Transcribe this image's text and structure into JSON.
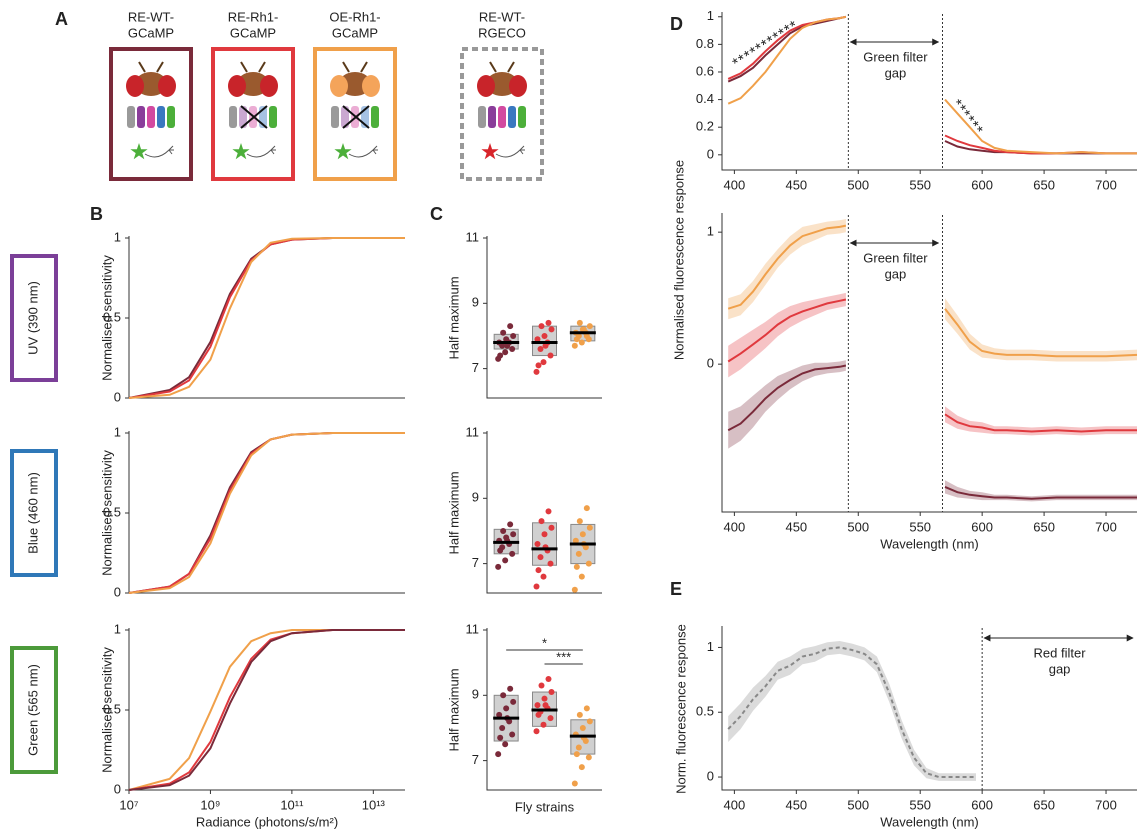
{
  "panel_labels": [
    "A",
    "B",
    "C",
    "D",
    "E"
  ],
  "strains": [
    [
      "RE-WT-",
      "GCaMP"
    ],
    [
      "RE-Rh1-",
      "GCaMP"
    ],
    [
      "OE-Rh1-",
      "GCaMP"
    ],
    [
      "RE-WT-",
      "RGECO"
    ]
  ],
  "stimuli": [
    "UV (390 nm)",
    "Blue (460 nm)",
    "Green (565 nm)"
  ],
  "chart_data": [
    {
      "type": "line",
      "ylabel": "Normalised sensitivity",
      "xlog": true,
      "xlim": [
        10000000,
        60000000000000
      ],
      "ylim": [
        0,
        1
      ],
      "yticks": [
        0,
        0.5,
        1
      ],
      "x": [
        10000000,
        100000000,
        300000000,
        1000000000,
        3000000000,
        10000000000,
        30000000000,
        100000000000,
        1000000000000,
        60000000000000
      ],
      "series": [
        {
          "color": "#7a2a3a",
          "values": [
            0,
            0.05,
            0.13,
            0.35,
            0.65,
            0.87,
            0.96,
            0.99,
            1,
            1
          ]
        },
        {
          "color": "#e0393e",
          "values": [
            0,
            0.04,
            0.11,
            0.32,
            0.63,
            0.86,
            0.96,
            0.99,
            1,
            1
          ]
        },
        {
          "color": "#f0a04a",
          "values": [
            0,
            0.02,
            0.07,
            0.24,
            0.56,
            0.85,
            0.97,
            0.995,
            1,
            1
          ]
        }
      ]
    },
    {
      "type": "line",
      "ylabel": "Normalised sensitivity",
      "xlog": true,
      "xlim": [
        10000000,
        60000000000000
      ],
      "ylim": [
        0,
        1
      ],
      "yticks": [
        0,
        0.5,
        1
      ],
      "x": [
        10000000,
        100000000,
        300000000,
        1000000000,
        3000000000,
        10000000000,
        30000000000,
        100000000000,
        1000000000000,
        60000000000000
      ],
      "series": [
        {
          "color": "#7a2a3a",
          "values": [
            0,
            0.04,
            0.12,
            0.36,
            0.66,
            0.88,
            0.96,
            0.99,
            1,
            1
          ]
        },
        {
          "color": "#e0393e",
          "values": [
            0,
            0.04,
            0.12,
            0.34,
            0.64,
            0.87,
            0.96,
            0.99,
            1,
            1
          ]
        },
        {
          "color": "#f0a04a",
          "values": [
            0,
            0.03,
            0.1,
            0.31,
            0.62,
            0.86,
            0.96,
            0.99,
            1,
            1
          ]
        }
      ]
    },
    {
      "type": "line",
      "ylabel": "Normalised sensitivity",
      "xlabel": "Radiance (photons/s/m²)",
      "xlog": true,
      "xlim": [
        10000000,
        60000000000000
      ],
      "ylim": [
        0,
        1
      ],
      "yticks": [
        0,
        0.5,
        1
      ],
      "xticks": [
        {
          "value": 10000000,
          "label": "10⁷"
        },
        {
          "value": 1000000000,
          "label": "10⁹"
        },
        {
          "value": 100000000000,
          "label": "10¹¹"
        },
        {
          "value": 10000000000000,
          "label": "10¹³"
        }
      ],
      "x": [
        10000000,
        100000000,
        300000000,
        1000000000,
        3000000000,
        10000000000,
        30000000000,
        100000000000,
        1000000000000,
        60000000000000
      ],
      "series": [
        {
          "color": "#f0a04a",
          "values": [
            0,
            0.07,
            0.2,
            0.49,
            0.77,
            0.93,
            0.98,
            1,
            1,
            1
          ]
        },
        {
          "color": "#e0393e",
          "values": [
            0,
            0.04,
            0.11,
            0.3,
            0.58,
            0.82,
            0.94,
            0.98,
            1,
            1
          ]
        },
        {
          "color": "#7a2a3a",
          "values": [
            0,
            0.03,
            0.09,
            0.26,
            0.54,
            0.8,
            0.93,
            0.98,
            1,
            1
          ]
        }
      ]
    },
    {
      "type": "box",
      "ylabel": "Half maximum",
      "ylim": [
        6.1,
        11
      ],
      "yticks": [
        7,
        9,
        11
      ],
      "groups": [
        {
          "color": "#7a2a3a",
          "median": 7.8,
          "q1": 7.6,
          "q3": 8.05,
          "points": [
            7.3,
            7.5,
            7.6,
            7.7,
            7.8,
            7.8,
            7.9,
            8.0,
            8.1,
            8.3,
            7.4,
            7.7
          ]
        },
        {
          "color": "#e0393e",
          "median": 7.8,
          "q1": 7.4,
          "q3": 8.3,
          "points": [
            6.9,
            7.2,
            7.4,
            7.6,
            7.8,
            7.9,
            8.0,
            8.2,
            8.3,
            8.4,
            7.1,
            7.7
          ]
        },
        {
          "color": "#f0a04a",
          "median": 8.1,
          "q1": 7.85,
          "q3": 8.3,
          "points": [
            7.7,
            7.8,
            7.9,
            8.0,
            8.1,
            8.1,
            8.2,
            8.3,
            8.4,
            8.0,
            7.9,
            8.2
          ]
        }
      ]
    },
    {
      "type": "box",
      "ylabel": "Half maximum",
      "ylim": [
        6.1,
        11
      ],
      "yticks": [
        7,
        9,
        11
      ],
      "groups": [
        {
          "color": "#7a2a3a",
          "median": 7.65,
          "q1": 7.3,
          "q3": 8.05,
          "points": [
            6.9,
            7.1,
            7.3,
            7.5,
            7.6,
            7.7,
            7.8,
            7.9,
            8.0,
            8.2,
            7.4,
            7.7
          ]
        },
        {
          "color": "#e0393e",
          "median": 7.45,
          "q1": 6.95,
          "q3": 8.25,
          "points": [
            6.3,
            6.6,
            7.0,
            7.2,
            7.4,
            7.6,
            7.9,
            8.1,
            8.3,
            8.6,
            6.8,
            7.5
          ]
        },
        {
          "color": "#f0a04a",
          "median": 7.6,
          "q1": 7.0,
          "q3": 8.2,
          "points": [
            6.2,
            6.6,
            7.0,
            7.3,
            7.5,
            7.7,
            7.9,
            8.1,
            8.3,
            8.7,
            6.9,
            7.6
          ]
        }
      ]
    },
    {
      "type": "box",
      "ylabel": "Half maximum",
      "xlabel": "Fly strains",
      "ylim": [
        6.1,
        11
      ],
      "yticks": [
        7,
        9,
        11
      ],
      "annotations": [
        "*",
        "***"
      ],
      "groups": [
        {
          "color": "#7a2a3a",
          "median": 8.3,
          "q1": 7.6,
          "q3": 9.0,
          "points": [
            7.2,
            7.5,
            7.8,
            8.0,
            8.2,
            8.4,
            8.6,
            8.8,
            9.0,
            9.2,
            7.7,
            8.3
          ]
        },
        {
          "color": "#e0393e",
          "median": 8.55,
          "q1": 8.05,
          "q3": 9.1,
          "points": [
            7.9,
            8.1,
            8.3,
            8.5,
            8.6,
            8.7,
            8.9,
            9.1,
            9.3,
            9.5,
            8.4,
            8.7
          ]
        },
        {
          "color": "#f0a04a",
          "median": 7.75,
          "q1": 7.2,
          "q3": 8.25,
          "points": [
            6.3,
            6.8,
            7.1,
            7.4,
            7.6,
            7.8,
            8.0,
            8.2,
            8.4,
            8.6,
            7.2,
            7.7
          ]
        }
      ]
    },
    {
      "type": "line",
      "xlim": [
        390,
        725
      ],
      "ylim": [
        -0.11,
        1.02
      ],
      "xticks": [
        400,
        450,
        500,
        550,
        600,
        650,
        700
      ],
      "yticks": [
        0,
        0.2,
        0.4,
        0.6,
        0.8,
        1
      ],
      "filter_gap": [
        492,
        568
      ],
      "gap_label": [
        "Green filter",
        "gap"
      ],
      "annotations": [
        "***********",
        "******"
      ],
      "x": [
        395,
        405,
        415,
        425,
        435,
        445,
        455,
        465,
        475,
        485,
        490,
        530,
        570,
        580,
        590,
        600,
        610,
        620,
        640,
        660,
        680,
        700,
        725
      ],
      "series": [
        {
          "color": "#7a2a3a",
          "values": [
            0.53,
            0.57,
            0.63,
            0.72,
            0.8,
            0.88,
            0.93,
            0.95,
            0.97,
            0.99,
            1,
            null,
            0.1,
            0.06,
            0.04,
            0.03,
            0.02,
            0.02,
            0.01,
            0.01,
            0.01,
            0.01,
            0.01
          ]
        },
        {
          "color": "#e0393e",
          "values": [
            0.55,
            0.59,
            0.66,
            0.75,
            0.83,
            0.9,
            0.94,
            0.96,
            0.98,
            0.99,
            1,
            null,
            0.14,
            0.1,
            0.07,
            0.05,
            0.03,
            0.02,
            0.01,
            0.01,
            0.02,
            0.01,
            0.01
          ]
        },
        {
          "color": "#f0a04a",
          "values": [
            0.37,
            0.41,
            0.5,
            0.6,
            0.72,
            0.84,
            0.92,
            0.96,
            0.98,
            0.99,
            1,
            null,
            0.4,
            0.3,
            0.2,
            0.1,
            0.05,
            0.03,
            0.02,
            0.01,
            0.02,
            0.01,
            0.01
          ]
        }
      ]
    },
    {
      "type": "line",
      "ylabel": "Normalised fluorescence response",
      "xlabel": "Wavelength (nm)",
      "xlim": [
        390,
        725
      ],
      "ylim": [
        -1.12,
        1.13
      ],
      "xticks": [
        400,
        450,
        500,
        550,
        600,
        650,
        700
      ],
      "yticks": [
        0,
        1
      ],
      "filter_gap": [
        492,
        568
      ],
      "gap_label": [
        "Green filter",
        "gap"
      ],
      "x": [
        395,
        405,
        415,
        425,
        435,
        445,
        455,
        465,
        475,
        485,
        490,
        530,
        570,
        580,
        590,
        600,
        610,
        620,
        640,
        660,
        680,
        700,
        725
      ],
      "series": [
        {
          "color": "#f0a04a",
          "values": [
            0.42,
            0.45,
            0.55,
            0.68,
            0.8,
            0.9,
            0.97,
            1.0,
            1.03,
            1.04,
            1.05,
            null,
            0.42,
            0.3,
            0.17,
            0.1,
            0.08,
            0.07,
            0.07,
            0.06,
            0.06,
            0.06,
            0.07
          ],
          "band": [
            0.08,
            0.08,
            0.08,
            0.08,
            0.07,
            0.07,
            0.07,
            0.06,
            0.05,
            0.05,
            0.05,
            null,
            0.08,
            0.07,
            0.06,
            0.05,
            0.04,
            0.04,
            0.04,
            0.04,
            0.04,
            0.04,
            0.04
          ]
        },
        {
          "color": "#e0393e",
          "values": [
            0.02,
            0.08,
            0.15,
            0.22,
            0.3,
            0.36,
            0.4,
            0.43,
            0.46,
            0.48,
            0.49,
            null,
            -0.38,
            -0.44,
            -0.47,
            -0.48,
            -0.5,
            -0.5,
            -0.51,
            -0.5,
            -0.51,
            -0.5,
            -0.5
          ],
          "band": [
            0.12,
            0.12,
            0.11,
            0.1,
            0.09,
            0.08,
            0.07,
            0.06,
            0.05,
            0.05,
            0.05,
            null,
            0.06,
            0.05,
            0.04,
            0.04,
            0.03,
            0.03,
            0.03,
            0.03,
            0.03,
            0.03,
            0.03
          ]
        },
        {
          "color": "#7a2a3a",
          "values": [
            -0.5,
            -0.45,
            -0.36,
            -0.26,
            -0.18,
            -0.12,
            -0.07,
            -0.04,
            -0.03,
            -0.02,
            -0.01,
            null,
            -0.93,
            -0.97,
            -0.99,
            -1.0,
            -1.01,
            -1.01,
            -1.02,
            -1.01,
            -1.01,
            -1.01,
            -1.01
          ],
          "band": [
            0.14,
            0.13,
            0.12,
            0.1,
            0.09,
            0.07,
            0.06,
            0.05,
            0.04,
            0.04,
            0.04,
            null,
            0.05,
            0.04,
            0.03,
            0.03,
            0.02,
            0.02,
            0.02,
            0.02,
            0.02,
            0.02,
            0.02
          ]
        }
      ]
    },
    {
      "type": "line",
      "ylabel": "Norm. fluorescence response",
      "xlabel": "Wavelength (nm)",
      "xlim": [
        390,
        725
      ],
      "ylim": [
        -0.1,
        1.15
      ],
      "xticks": [
        400,
        450,
        500,
        550,
        600,
        650,
        700
      ],
      "yticks": [
        0,
        0.5,
        1
      ],
      "filter_gap": [
        600,
        725
      ],
      "gap_label": [
        "Red filter",
        "gap"
      ],
      "x": [
        395,
        405,
        415,
        425,
        435,
        445,
        455,
        465,
        475,
        485,
        495,
        505,
        515,
        525,
        535,
        545,
        555,
        565,
        575,
        585,
        595
      ],
      "series": [
        {
          "color": "#888888",
          "dashed": true,
          "values": [
            0.37,
            0.47,
            0.6,
            0.7,
            0.82,
            0.86,
            0.93,
            0.95,
            0.99,
            1.0,
            0.98,
            0.95,
            0.87,
            0.65,
            0.37,
            0.15,
            0.03,
            0,
            0,
            0,
            0
          ],
          "band": [
            0.1,
            0.1,
            0.09,
            0.08,
            0.07,
            0.07,
            0.06,
            0.06,
            0.05,
            0.05,
            0.05,
            0.05,
            0.06,
            0.07,
            0.07,
            0.06,
            0.04,
            0.03,
            0.03,
            0.03,
            0.03
          ]
        }
      ]
    }
  ]
}
